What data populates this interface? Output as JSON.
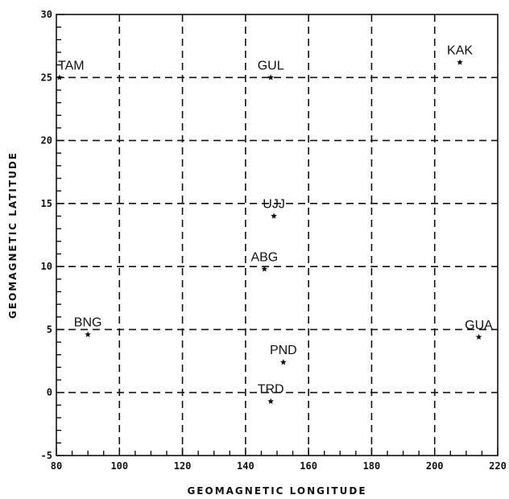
{
  "chart_data": {
    "type": "scatter",
    "xlabel": "GEOMAGNETIC LONGITUDE",
    "ylabel": "GEOMAGNETIC LATITUDE",
    "xlim": [
      80,
      220
    ],
    "ylim": [
      -5,
      30
    ],
    "x_ticks": [
      80,
      100,
      120,
      140,
      160,
      180,
      200,
      220
    ],
    "y_ticks": [
      -5,
      0,
      5,
      10,
      15,
      20,
      25,
      30
    ],
    "grid": true,
    "marker": "star",
    "points": [
      {
        "label": "TAM",
        "x": 81,
        "y": 25
      },
      {
        "label": "GUL",
        "x": 148,
        "y": 25
      },
      {
        "label": "KAK",
        "x": 208,
        "y": 26.2
      },
      {
        "label": "UJJ",
        "x": 149,
        "y": 14
      },
      {
        "label": "ABG",
        "x": 146,
        "y": 9.8
      },
      {
        "label": "BNG",
        "x": 90,
        "y": 4.6
      },
      {
        "label": "GUA",
        "x": 214,
        "y": 4.4
      },
      {
        "label": "PND",
        "x": 152,
        "y": 2.4
      },
      {
        "label": "TRD",
        "x": 148,
        "y": -0.7
      }
    ]
  }
}
